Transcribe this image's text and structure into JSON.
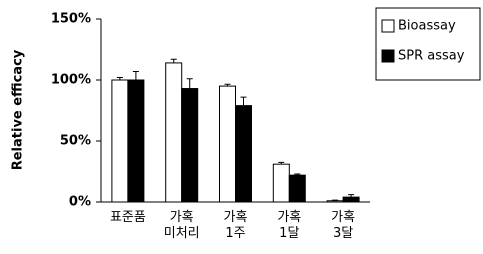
{
  "chart_data": {
    "type": "bar",
    "y_label": "Relative efficacy",
    "categories": [
      "표준품",
      "가혹\n미처리",
      "가혹\n1주",
      "가혹\n1달",
      "가혹\n3달"
    ],
    "series": [
      {
        "name": "Bioassay",
        "color": "#ffffff",
        "values": [
          100,
          114,
          95,
          31,
          1
        ],
        "errors": [
          2,
          3,
          1.5,
          1.5,
          0.5
        ]
      },
      {
        "name": "SPR assay",
        "color": "#000000",
        "values": [
          100,
          93,
          79,
          22,
          4
        ],
        "errors": [
          7,
          8,
          7,
          1,
          2
        ]
      }
    ],
    "ylim": [
      0,
      150
    ],
    "yticks": [
      {
        "value": 0,
        "label": "0%"
      },
      {
        "value": 50,
        "label": "50%"
      },
      {
        "value": 100,
        "label": "100%"
      },
      {
        "value": 150,
        "label": "150%"
      }
    ],
    "grid": false,
    "legend": "top-right"
  }
}
